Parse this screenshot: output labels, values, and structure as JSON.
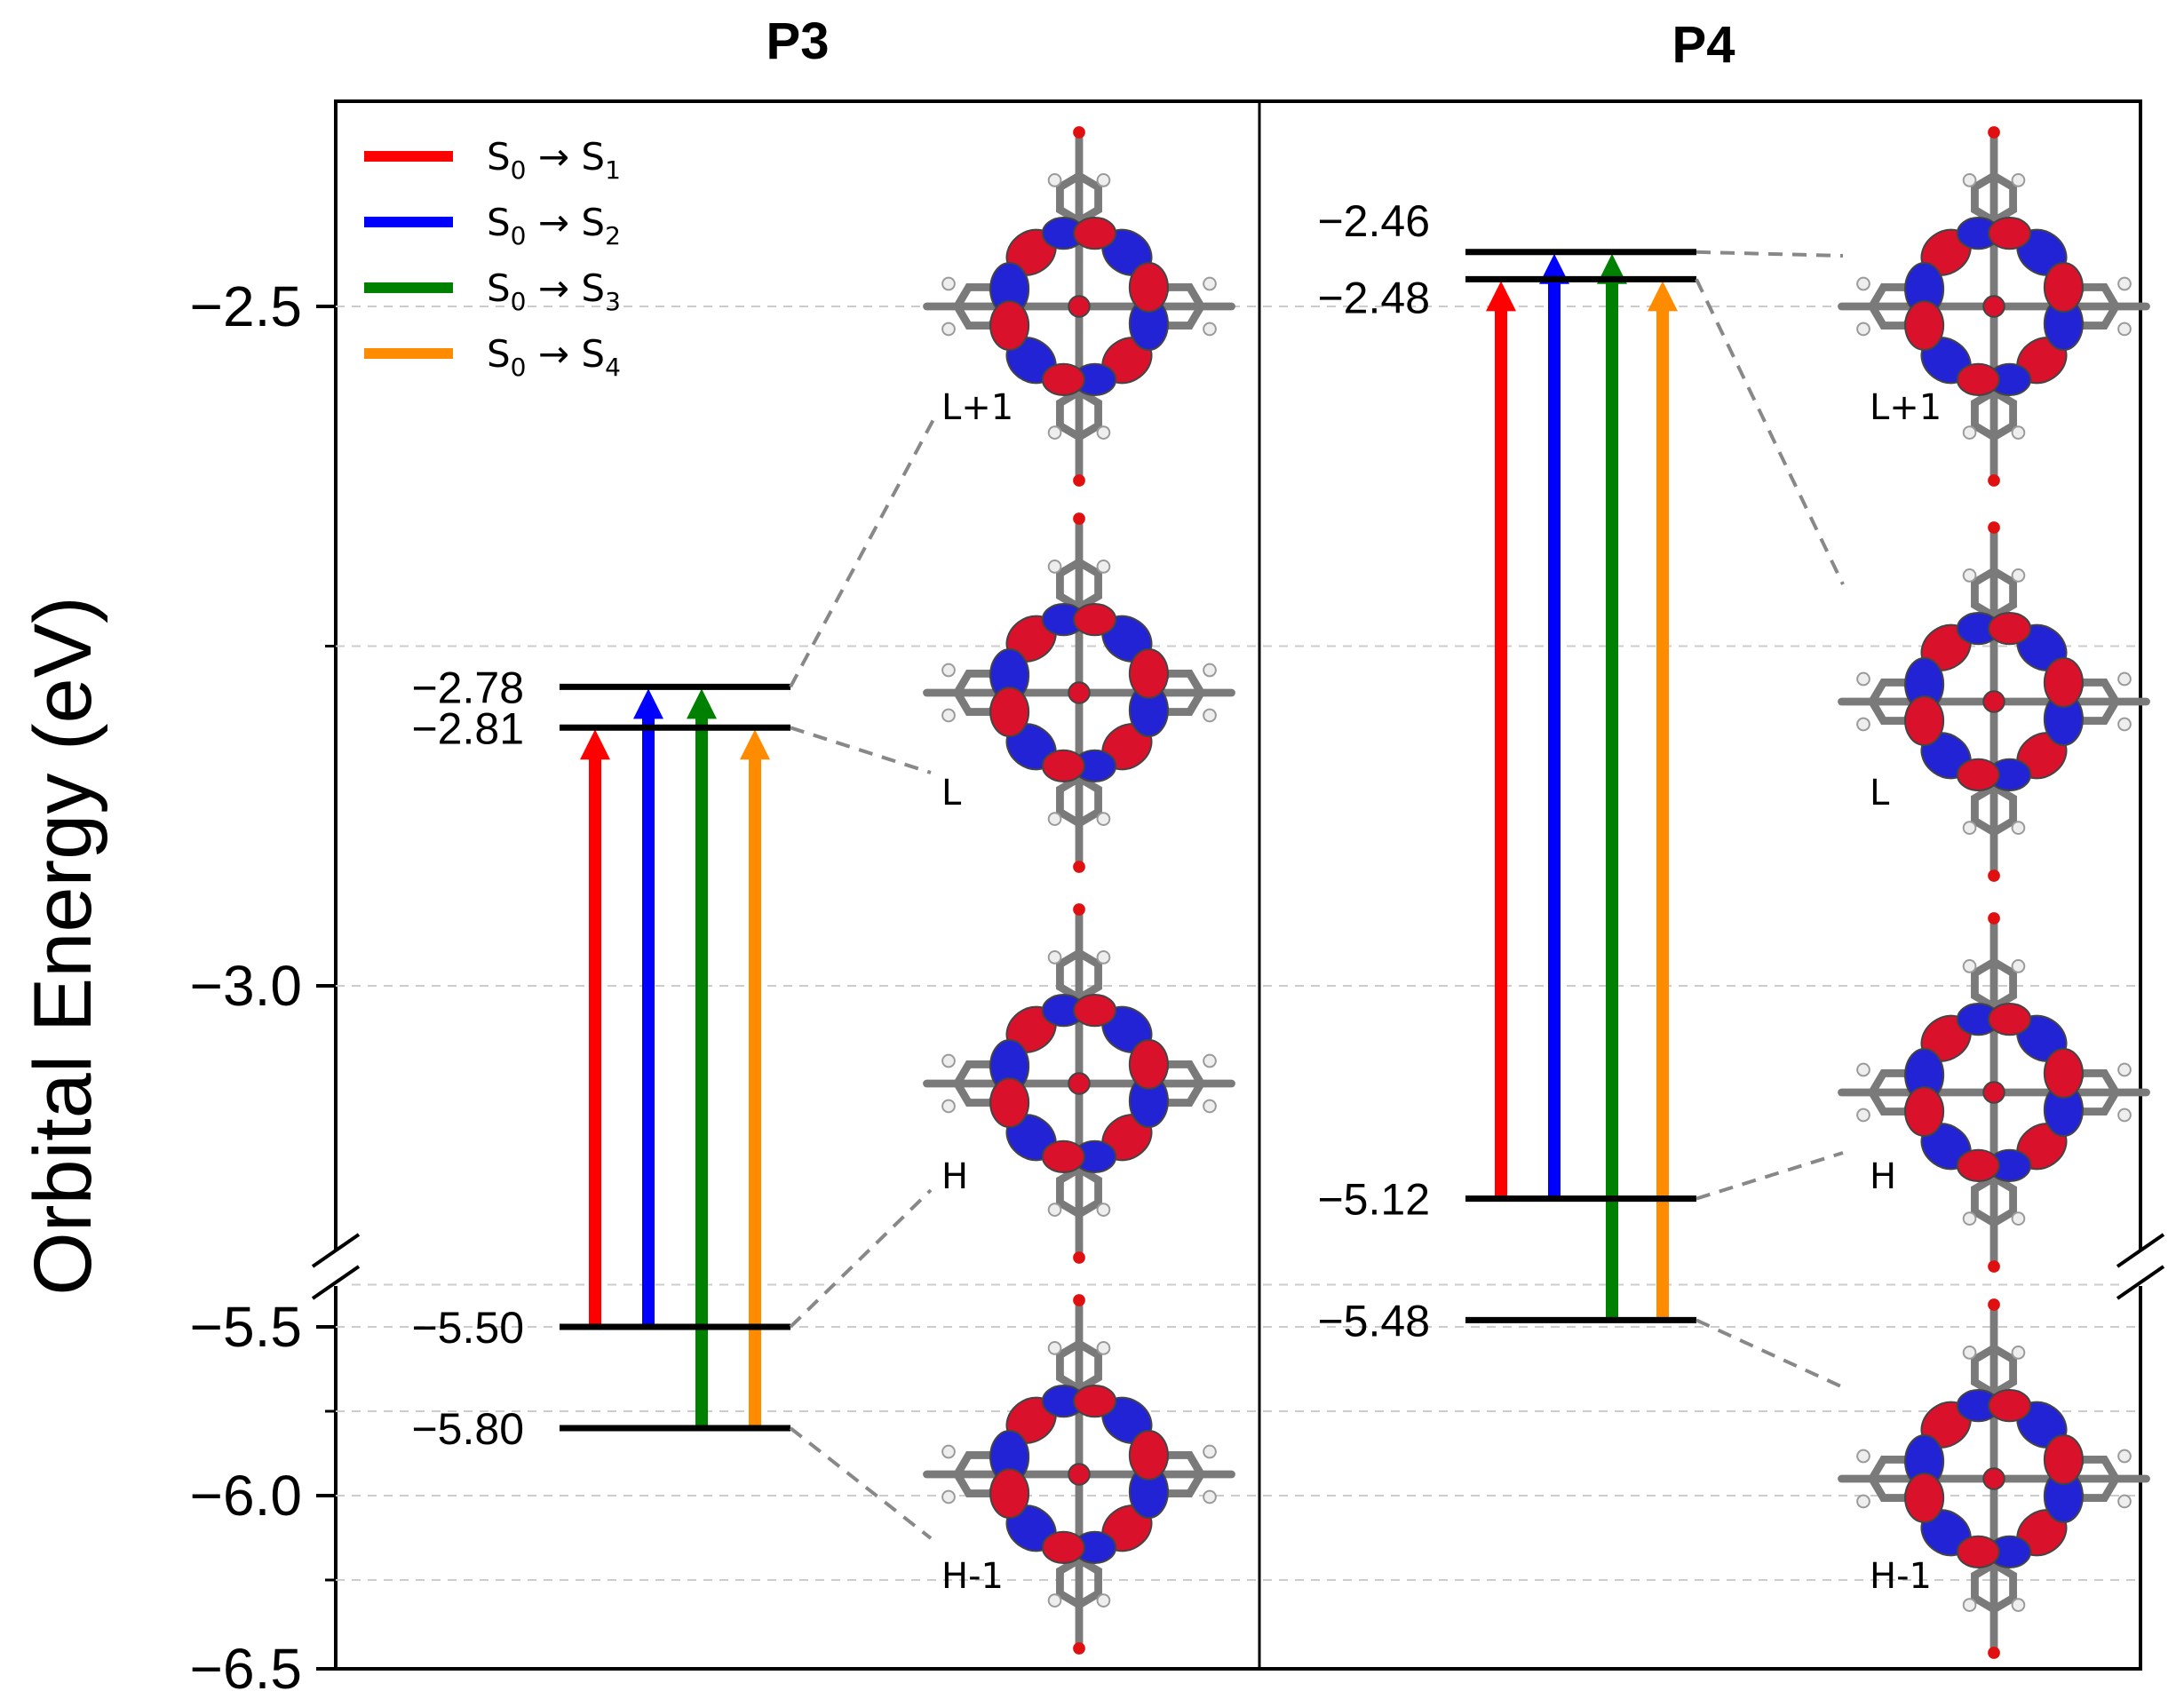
{
  "panel_titles": [
    "P3",
    "P4"
  ],
  "chart_data": {
    "type": "energy-level-diagram",
    "ylabel": "Orbital Energy (eV)",
    "axis_break": true,
    "yticks_upper": [
      -2.5,
      -3.0
    ],
    "yticks_upper_labels": [
      "−2.5",
      "−3.0"
    ],
    "yticks_lower": [
      -5.5,
      -6.0,
      -6.5
    ],
    "yticks_lower_labels": [
      "−5.5",
      "−6.0",
      "−6.5"
    ],
    "ylim_upper": [
      -3.2,
      -2.3
    ],
    "ylim_lower": [
      -6.5,
      -5.3
    ],
    "legend": {
      "placement": "top-left",
      "entries": [
        {
          "prefix": "S",
          "from_sub": "0",
          "arrow": "→",
          "to": "S",
          "to_sub": "1",
          "color": "#ff0000"
        },
        {
          "prefix": "S",
          "from_sub": "0",
          "arrow": "→",
          "to": "S",
          "to_sub": "2",
          "color": "#0000ff"
        },
        {
          "prefix": "S",
          "from_sub": "0",
          "arrow": "→",
          "to": "S",
          "to_sub": "3",
          "color": "#008000"
        },
        {
          "prefix": "S",
          "from_sub": "0",
          "arrow": "→",
          "to": "S",
          "to_sub": "4",
          "color": "#ff8c00"
        }
      ]
    },
    "panels": [
      {
        "name": "P3",
        "levels": [
          {
            "orbital": "L+1",
            "energy": -2.78,
            "label": "−2.78"
          },
          {
            "orbital": "L",
            "energy": -2.81,
            "label": "−2.81"
          },
          {
            "orbital": "H",
            "energy": -5.5,
            "label": "−5.50"
          },
          {
            "orbital": "H-1",
            "energy": -5.8,
            "label": "−5.80"
          }
        ],
        "transitions": [
          {
            "name": "S0→S1",
            "from": "H",
            "to": "L",
            "color": "#ff0000"
          },
          {
            "name": "S0→S2",
            "from": "H",
            "to": "L+1",
            "color": "#0000ff"
          },
          {
            "name": "S0→S3",
            "from": "H-1",
            "to": "L+1",
            "color": "#008000"
          },
          {
            "name": "S0→S4",
            "from": "H-1",
            "to": "L",
            "color": "#ff8c00"
          }
        ],
        "orbital_labels": [
          "L+1",
          "L",
          "H",
          "H-1"
        ]
      },
      {
        "name": "P4",
        "levels": [
          {
            "orbital": "L+1",
            "energy": -2.46,
            "label": "−2.46"
          },
          {
            "orbital": "L",
            "energy": -2.48,
            "label": "−2.48"
          },
          {
            "orbital": "H",
            "energy": -5.12,
            "label": "−5.12"
          },
          {
            "orbital": "H-1",
            "energy": -5.48,
            "label": "−5.48"
          }
        ],
        "transitions": [
          {
            "name": "S0→S1",
            "from": "H",
            "to": "L",
            "color": "#ff0000"
          },
          {
            "name": "S0→S2",
            "from": "H",
            "to": "L+1",
            "color": "#0000ff"
          },
          {
            "name": "S0→S3",
            "from": "H-1",
            "to": "L+1",
            "color": "#008000"
          },
          {
            "name": "S0→S4",
            "from": "H-1",
            "to": "L",
            "color": "#ff8c00"
          }
        ],
        "orbital_labels": [
          "L+1",
          "L",
          "H",
          "H-1"
        ]
      }
    ]
  },
  "colors": {
    "lobe_positive": "#d9112a",
    "lobe_negative": "#2323d6",
    "skeleton": "#707070",
    "hydrogen": "#e8e8e8",
    "nitrogen": "#3b3bd8",
    "oxygen": "#e01010"
  },
  "orbital_images": [
    {
      "name": "p3-orbital-lumo-plus-1",
      "icon": "molecular-orbital-icon"
    },
    {
      "name": "p3-orbital-lumo",
      "icon": "molecular-orbital-icon"
    },
    {
      "name": "p3-orbital-homo",
      "icon": "molecular-orbital-icon"
    },
    {
      "name": "p3-orbital-homo-minus-1",
      "icon": "molecular-orbital-icon"
    },
    {
      "name": "p4-orbital-lumo-plus-1",
      "icon": "molecular-orbital-icon"
    },
    {
      "name": "p4-orbital-lumo",
      "icon": "molecular-orbital-icon"
    },
    {
      "name": "p4-orbital-homo",
      "icon": "molecular-orbital-icon"
    },
    {
      "name": "p4-orbital-homo-minus-1",
      "icon": "molecular-orbital-icon"
    }
  ]
}
